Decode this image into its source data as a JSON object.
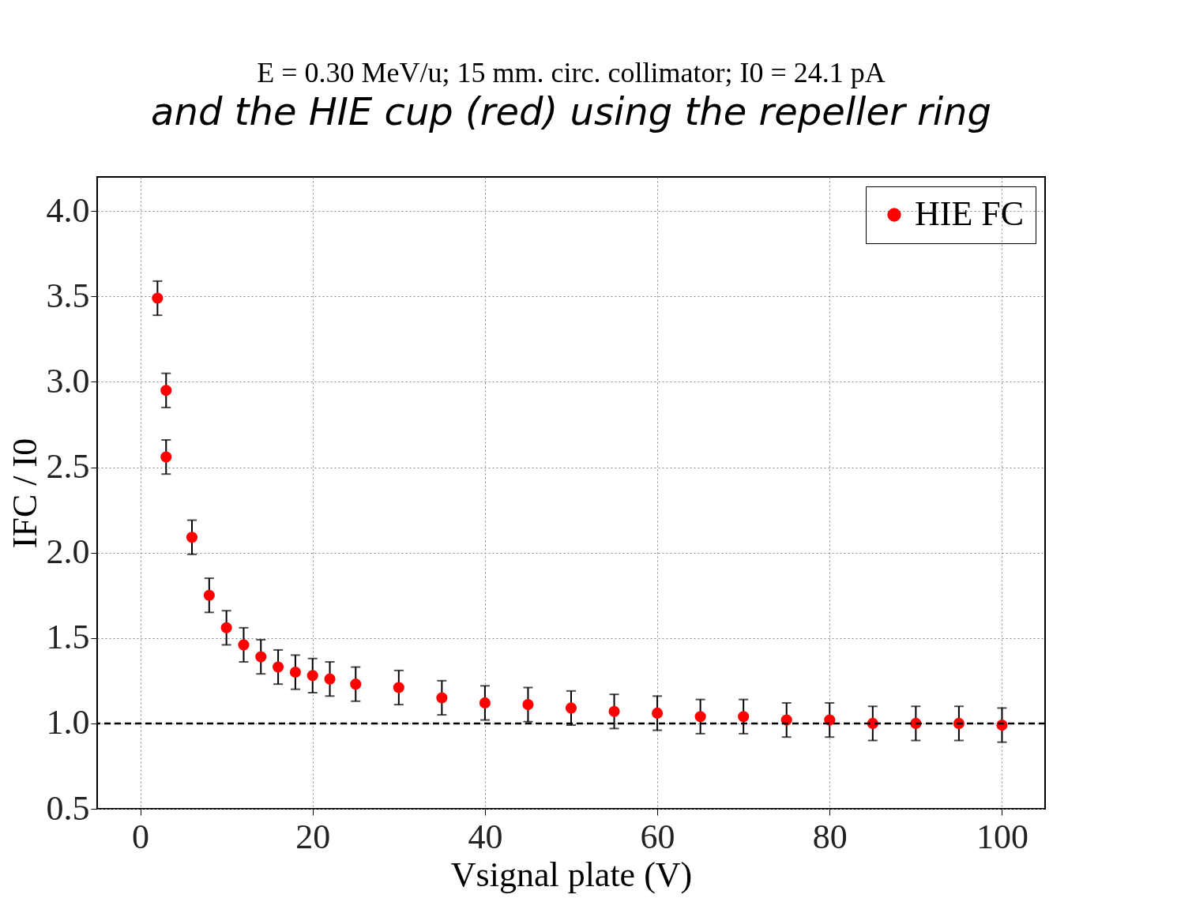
{
  "chart_data": {
    "type": "scatter",
    "title": "E = 0.30 MeV/u; 15 mm. circ. collimator; I0 = 24.1 pA",
    "xlabel": "Vsignal plate (V)",
    "ylabel": "IFC / I0",
    "annotations": [
      "and the HIE cup (red) using the repeller ring"
    ],
    "x": [
      2,
      3,
      3,
      6,
      8,
      10,
      12,
      14,
      16,
      18,
      20,
      22,
      25,
      30,
      35,
      40,
      45,
      50,
      55,
      60,
      65,
      70,
      75,
      80,
      85,
      90,
      95,
      100
    ],
    "series": [
      {
        "name": "HIE FC",
        "color": "#ff0000",
        "values": [
          3.49,
          2.95,
          2.56,
          2.09,
          1.75,
          1.56,
          1.46,
          1.39,
          1.33,
          1.3,
          1.28,
          1.26,
          1.23,
          1.21,
          1.15,
          1.12,
          1.11,
          1.09,
          1.07,
          1.06,
          1.04,
          1.04,
          1.02,
          1.02,
          1.0,
          1.0,
          1.0,
          0.99
        ],
        "errors": [
          0.1,
          0.1,
          0.1,
          0.1,
          0.1,
          0.1,
          0.1,
          0.1,
          0.1,
          0.1,
          0.1,
          0.1,
          0.1,
          0.1,
          0.1,
          0.1,
          0.1,
          0.1,
          0.1,
          0.1,
          0.1,
          0.1,
          0.1,
          0.1,
          0.1,
          0.1,
          0.1,
          0.1
        ]
      }
    ],
    "xlim": [
      -5,
      105
    ],
    "xticks": [
      0,
      20,
      40,
      60,
      80,
      100
    ],
    "ylim": [
      0.5,
      4.2
    ],
    "yticks": [
      0.5,
      {
        "value": 1,
        "label": "1.0"
      },
      1.5,
      {
        "value": 2,
        "label": "2.0"
      },
      2.5,
      {
        "value": 3,
        "label": "3.0"
      },
      3.5,
      {
        "value": 4,
        "label": "4.0"
      }
    ],
    "ref_lines": [
      {
        "axis": "y",
        "value": 1.0,
        "color": "#000000",
        "line_style": "dashed"
      }
    ],
    "grid": true,
    "legend": "top right",
    "marker": "circle"
  }
}
